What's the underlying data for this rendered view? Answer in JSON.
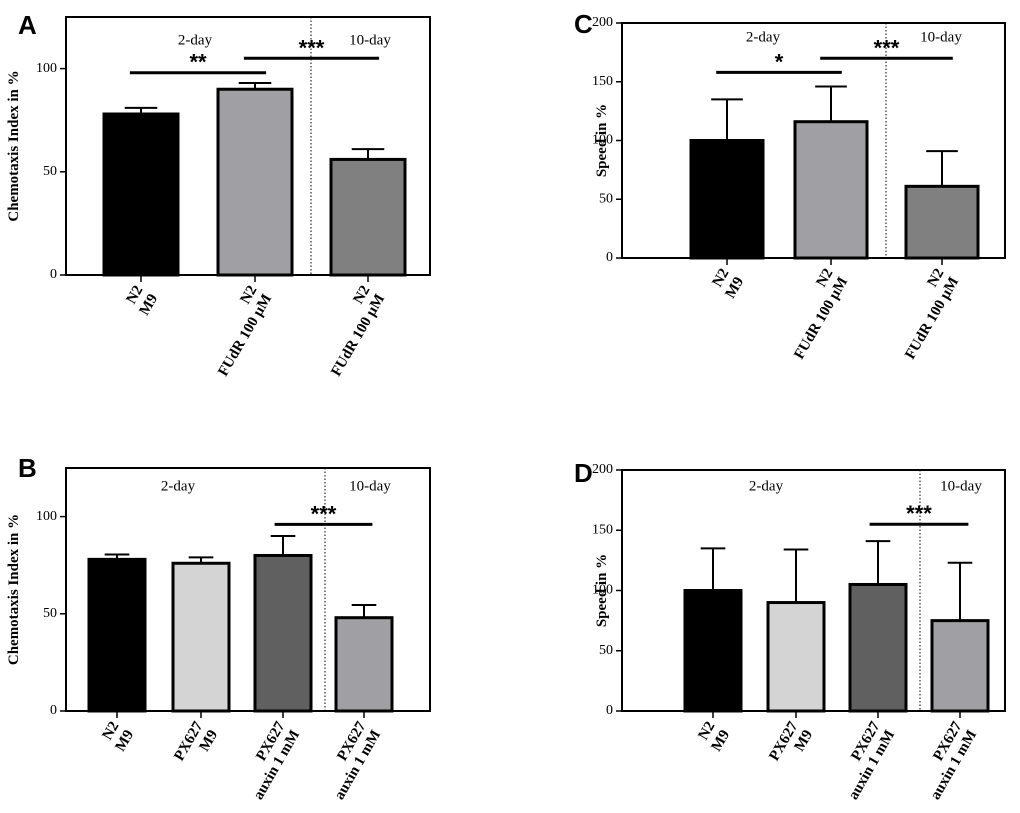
{
  "chart_data": [
    {
      "panel": "A",
      "type": "bar",
      "ylabel": "Chemotaxis  Index in %",
      "ylim": [
        0,
        125
      ],
      "yticks": [
        0,
        50,
        100
      ],
      "groups": [
        "2-day",
        "10-day"
      ],
      "categories": [
        {
          "lines": [
            "N2",
            "M9"
          ],
          "value": 78,
          "error": 3,
          "color": "#000000"
        },
        {
          "lines": [
            "N2",
            "FUdR 100 µM"
          ],
          "value": 90,
          "error": 3,
          "color": "#a0a0a4"
        },
        {
          "lines": [
            "N2",
            "FUdR 100 µM"
          ],
          "value": 56,
          "error": 5,
          "color": "#808080"
        }
      ],
      "divider_after": 1,
      "significance": [
        {
          "from": 0,
          "to": 1,
          "label": "**",
          "y": 98
        },
        {
          "from": 1,
          "to": 2,
          "label": "***",
          "y": 105
        }
      ]
    },
    {
      "panel": "B",
      "type": "bar",
      "ylabel": "Chemotaxis  Index in %",
      "ylim": [
        0,
        125
      ],
      "yticks": [
        0,
        50,
        100
      ],
      "groups": [
        "2-day",
        "10-day"
      ],
      "categories": [
        {
          "lines": [
            "N2",
            "M9"
          ],
          "value": 78,
          "error": 2.5,
          "color": "#000000"
        },
        {
          "lines": [
            "PX627",
            "M9"
          ],
          "value": 76,
          "error": 3,
          "color": "#d4d4d4"
        },
        {
          "lines": [
            "PX627",
            "auxin 1 mM"
          ],
          "value": 80,
          "error": 10,
          "color": "#606060"
        },
        {
          "lines": [
            "PX627",
            "auxin 1 mM"
          ],
          "value": 48,
          "error": 6.5,
          "color": "#a0a0a4"
        }
      ],
      "divider_after": 2,
      "significance": [
        {
          "from": 2,
          "to": 3,
          "label": "***",
          "y": 96
        }
      ]
    },
    {
      "panel": "C",
      "type": "bar",
      "ylabel": "Speed in %",
      "ylim": [
        0,
        200
      ],
      "yticks": [
        0,
        50,
        100,
        150,
        200
      ],
      "groups": [
        "2-day",
        "10-day"
      ],
      "categories": [
        {
          "lines": [
            "N2",
            "M9"
          ],
          "value": 100,
          "error": 35,
          "color": "#000000"
        },
        {
          "lines": [
            "N2",
            "FUdR 100 µM"
          ],
          "value": 116,
          "error": 30,
          "color": "#a0a0a4"
        },
        {
          "lines": [
            "N2",
            "FUdR 100 µM"
          ],
          "value": 61,
          "error": 30,
          "color": "#808080"
        }
      ],
      "divider_after": 1,
      "significance": [
        {
          "from": 0,
          "to": 1,
          "label": "*",
          "y": 158
        },
        {
          "from": 1,
          "to": 2,
          "label": "***",
          "y": 170
        }
      ]
    },
    {
      "panel": "D",
      "type": "bar",
      "ylabel": "Speed in %",
      "ylim": [
        0,
        200
      ],
      "yticks": [
        0,
        50,
        100,
        150,
        200
      ],
      "groups": [
        "2-day",
        "10-day"
      ],
      "categories": [
        {
          "lines": [
            "N2",
            "M9"
          ],
          "value": 100,
          "error": 35,
          "color": "#000000"
        },
        {
          "lines": [
            "PX627",
            "M9"
          ],
          "value": 90,
          "error": 44,
          "color": "#d4d4d4"
        },
        {
          "lines": [
            "PX627",
            "auxin 1 mM"
          ],
          "value": 105,
          "error": 36,
          "color": "#606060"
        },
        {
          "lines": [
            "PX627",
            "auxin 1 mM"
          ],
          "value": 75,
          "error": 48,
          "color": "#a0a0a4"
        }
      ],
      "divider_after": 2,
      "significance": [
        {
          "from": 2,
          "to": 3,
          "label": "***",
          "y": 155
        }
      ]
    }
  ]
}
